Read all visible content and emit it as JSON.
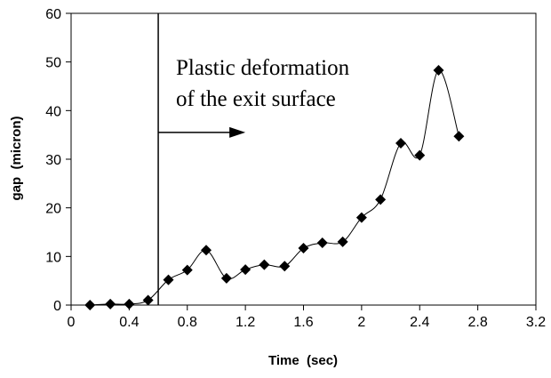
{
  "chart_data": {
    "type": "scatter",
    "title": "",
    "xlabel": "Time  (sec)",
    "ylabel": "gap  (micron)",
    "xlim": [
      0,
      3.2
    ],
    "ylim": [
      0,
      60
    ],
    "x_ticks": [
      "0",
      "0.4",
      "0.8",
      "1.2",
      "1.6",
      "2",
      "2.4",
      "2.8",
      "3.2"
    ],
    "y_ticks": [
      "0",
      "10",
      "20",
      "30",
      "40",
      "50",
      "60"
    ],
    "grid": false,
    "legend": "none",
    "marker": "diamond",
    "line": "smooth",
    "series": [
      {
        "x": [
          0.13,
          0.27,
          0.4,
          0.53,
          0.67,
          0.8,
          0.93,
          1.07,
          1.2,
          1.33,
          1.47,
          1.6,
          1.73,
          1.87,
          2.0,
          2.13,
          2.27,
          2.4,
          2.53,
          2.67
        ],
        "y": [
          0,
          0.2,
          0.2,
          1,
          5.2,
          7.2,
          11.3,
          5.5,
          7.3,
          8.3,
          8,
          11.7,
          12.8,
          13,
          18,
          21.7,
          33.3,
          30.8,
          48.3,
          34.7
        ]
      }
    ],
    "annotations": {
      "vline_x": 0.6,
      "text_line1": "Plastic deformation",
      "text_line2": "of the exit surface",
      "arrow_to_x": 1.2,
      "arrow_y": 35.5
    }
  }
}
